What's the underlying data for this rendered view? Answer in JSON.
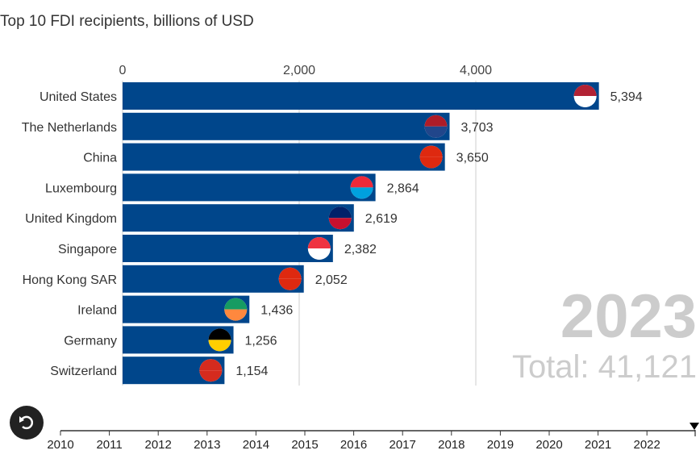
{
  "chart_data": {
    "type": "bar",
    "orientation": "horizontal",
    "title": "Top 10 FDI recipients, billions of USD",
    "categories": [
      "United States",
      "The Netherlands",
      "China",
      "Luxembourg",
      "United Kingdom",
      "Singapore",
      "Hong Kong SAR",
      "Ireland",
      "Germany",
      "Switzerland"
    ],
    "values": [
      5394,
      3703,
      3650,
      2864,
      2619,
      2382,
      2052,
      1436,
      1256,
      1154
    ],
    "value_labels": [
      "5,394",
      "3,703",
      "3,650",
      "2,864",
      "2,619",
      "2,382",
      "2,052",
      "1,436",
      "1,256",
      "1,154"
    ],
    "flags": [
      "us-flag",
      "nl-flag",
      "cn-flag",
      "lu-flag",
      "gb-flag",
      "sg-flag",
      "hk-flag",
      "ie-flag",
      "de-flag",
      "ch-flag"
    ],
    "xticks": [
      0,
      2000,
      4000
    ],
    "xtick_labels": [
      "0",
      "2,000",
      "4,000"
    ],
    "xlim": [
      0,
      6500
    ],
    "grid": true,
    "bar_color": "#00468b",
    "year": "2023",
    "total_label": "Total: 41,121",
    "timeline_years": [
      "2010",
      "2011",
      "2012",
      "2013",
      "2014",
      "2015",
      "2016",
      "2017",
      "2018",
      "2019",
      "2020",
      "2021",
      "2022"
    ],
    "timeline_current": 2023
  },
  "controls": {
    "replay": "replay-icon"
  }
}
